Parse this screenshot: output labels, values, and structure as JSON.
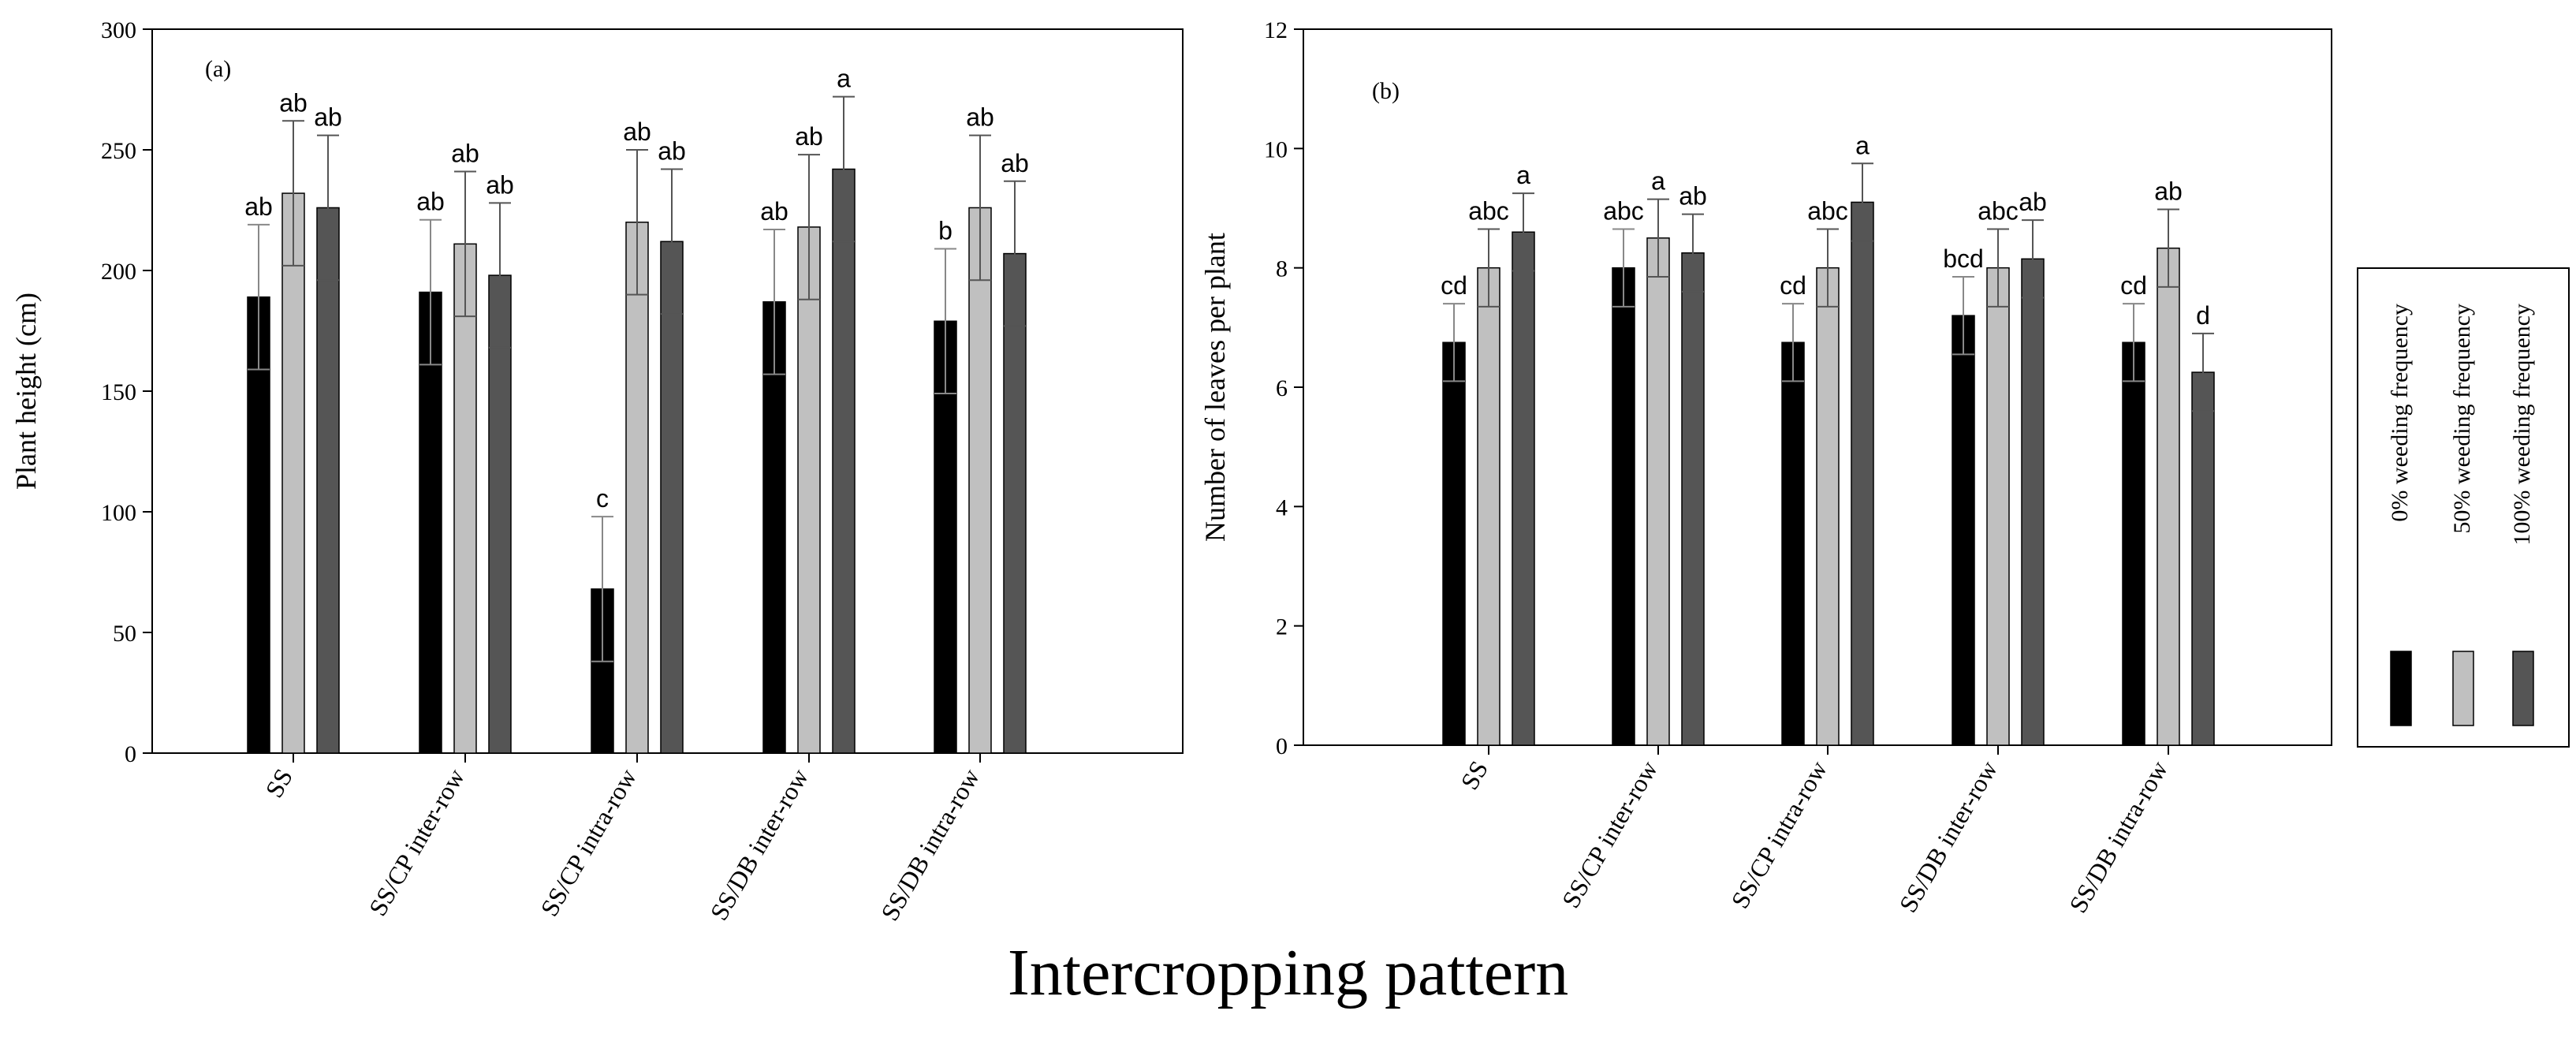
{
  "figure": {
    "shared_xlabel": "Intercropping pattern"
  },
  "legend": {
    "entries": [
      {
        "label": "0% weeding frequency",
        "color": "#000000"
      },
      {
        "label": "50% weeding frequency",
        "color": "#c0c0c0"
      },
      {
        "label": "100% weeding frequency",
        "color": "#555555"
      }
    ]
  },
  "chart_data": [
    {
      "type": "bar",
      "panel_label": "(a)",
      "ylabel": "Plant height (cm)",
      "ylim": [
        0,
        300
      ],
      "yticks": [
        0,
        50,
        100,
        150,
        200,
        250,
        300
      ],
      "categories": [
        "SS",
        "SS/CP inter-row",
        "SS/CP intra-row",
        "SS/DB inter-row",
        "SS/DB intra-row"
      ],
      "series": [
        {
          "name": "0% weeding frequency",
          "color": "#000000",
          "values": [
            189,
            191,
            68,
            187,
            179
          ],
          "errors": [
            30,
            30,
            30,
            30,
            30
          ],
          "letters": [
            "ab",
            "ab",
            "c",
            "ab",
            "b"
          ]
        },
        {
          "name": "50% weeding frequency",
          "color": "#c0c0c0",
          "values": [
            232,
            211,
            220,
            218,
            226
          ],
          "errors": [
            30,
            30,
            30,
            30,
            30
          ],
          "letters": [
            "ab",
            "ab",
            "ab",
            "ab",
            "ab"
          ]
        },
        {
          "name": "100% weeding frequency",
          "color": "#555555",
          "values": [
            226,
            198,
            212,
            242,
            207
          ],
          "errors": [
            30,
            30,
            30,
            30,
            30
          ],
          "letters": [
            "ab",
            "ab",
            "ab",
            "a",
            "ab"
          ]
        }
      ]
    },
    {
      "type": "bar",
      "panel_label": "(b)",
      "ylabel": "Number of leaves per plant",
      "ylim": [
        0,
        12
      ],
      "yticks": [
        0,
        2,
        4,
        6,
        8,
        10,
        12
      ],
      "categories": [
        "SS",
        "SS/CP inter-row",
        "SS/CP intra-row",
        "SS/DB inter-row",
        "SS/DB intra-row"
      ],
      "series": [
        {
          "name": "0% weeding frequency",
          "color": "#000000",
          "values": [
            6.75,
            8.0,
            6.75,
            7.2,
            6.75
          ],
          "errors": [
            0.65,
            0.65,
            0.65,
            0.65,
            0.65
          ],
          "letters": [
            "cd",
            "abc",
            "cd",
            "bcd",
            "cd"
          ]
        },
        {
          "name": "50% weeding frequency",
          "color": "#c0c0c0",
          "values": [
            8.0,
            8.5,
            8.0,
            8.0,
            8.33
          ],
          "errors": [
            0.65,
            0.65,
            0.65,
            0.65,
            0.65
          ],
          "letters": [
            "abc",
            "a",
            "abc",
            "abc",
            "ab"
          ]
        },
        {
          "name": "100% weeding frequency",
          "color": "#555555",
          "values": [
            8.6,
            8.25,
            9.1,
            8.15,
            6.25
          ],
          "errors": [
            0.65,
            0.65,
            0.65,
            0.65,
            0.65
          ],
          "letters": [
            "a",
            "ab",
            "a",
            "ab",
            "d"
          ]
        }
      ]
    }
  ]
}
